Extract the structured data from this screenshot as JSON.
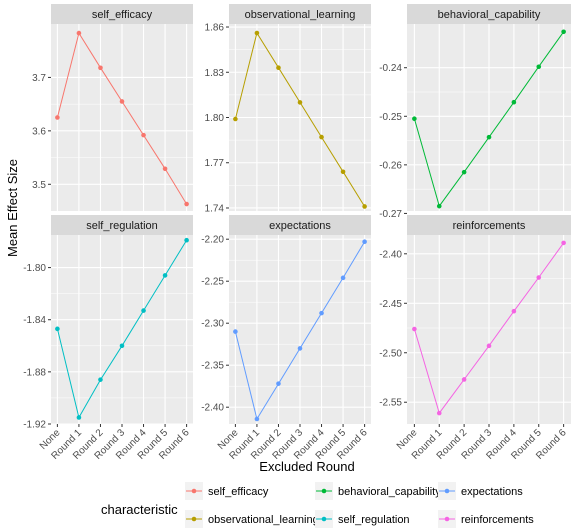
{
  "chart_data": {
    "type": "line",
    "xlabel": "Excluded Round",
    "ylabel": "Mean Effect Size",
    "categories": [
      "None",
      "Round 1",
      "Round 2",
      "Round 3",
      "Round 4",
      "Round 5",
      "Round 6"
    ],
    "legend": {
      "title": "characteristic",
      "placement": "bottom",
      "order": [
        "self_efficacy",
        "observational_learning",
        "behavioral_capability",
        "self_regulation",
        "expectations",
        "reinforcements"
      ]
    },
    "grid": true,
    "panels": [
      {
        "name": "self_efficacy",
        "color": "#F8766D",
        "values": [
          3.625,
          3.783,
          3.718,
          3.655,
          3.592,
          3.529,
          3.463
        ],
        "ylim": [
          3.45,
          3.8
        ],
        "yticks": [
          3.5,
          3.6,
          3.7
        ],
        "ytick_labels": [
          "3.5",
          "3.6",
          "3.7"
        ]
      },
      {
        "name": "observational_learning",
        "color": "#B79F00",
        "values": [
          1.799,
          1.856,
          1.833,
          1.81,
          1.787,
          1.764,
          1.741
        ],
        "ylim": [
          1.738,
          1.862
        ],
        "yticks": [
          1.74,
          1.77,
          1.8,
          1.83,
          1.86
        ],
        "ytick_labels": [
          "1.74",
          "1.77",
          "1.80",
          "1.83",
          "1.86"
        ]
      },
      {
        "name": "behavioral_capability",
        "color": "#00BA38",
        "values": [
          -0.2505,
          -0.2685,
          -0.2615,
          -0.2543,
          -0.2471,
          -0.2398,
          -0.2326
        ],
        "ylim": [
          -0.2695,
          -0.231
        ],
        "yticks": [
          -0.27,
          -0.26,
          -0.25,
          -0.24
        ],
        "ytick_labels": [
          "-0.27",
          "-0.26",
          "-0.25",
          "-0.24"
        ]
      },
      {
        "name": "self_regulation",
        "color": "#00BFC4",
        "values": [
          -1.847,
          -1.915,
          -1.886,
          -1.86,
          -1.833,
          -1.806,
          -1.779
        ],
        "ylim": [
          -1.92,
          -1.775
        ],
        "yticks": [
          -1.92,
          -1.88,
          -1.84,
          -1.8
        ],
        "ytick_labels": [
          "-1.92",
          "-1.88",
          "-1.84",
          "-1.80"
        ]
      },
      {
        "name": "expectations",
        "color": "#619CFF",
        "values": [
          -2.31,
          -2.414,
          -2.372,
          -2.33,
          -2.288,
          -2.246,
          -2.203
        ],
        "ylim": [
          -2.42,
          -2.195
        ],
        "yticks": [
          -2.4,
          -2.35,
          -2.3,
          -2.25,
          -2.2
        ],
        "ytick_labels": [
          "-2.40",
          "-2.35",
          "-2.30",
          "-2.25",
          "-2.20"
        ]
      },
      {
        "name": "reinforcements",
        "color": "#F564E3",
        "values": [
          -2.476,
          -2.561,
          -2.527,
          -2.493,
          -2.458,
          -2.424,
          -2.389
        ],
        "ylim": [
          -2.572,
          -2.381
        ],
        "yticks": [
          -2.55,
          -2.5,
          -2.45,
          -2.4
        ],
        "ytick_labels": [
          "-2.55",
          "-2.50",
          "-2.45",
          "-2.40"
        ]
      }
    ]
  }
}
